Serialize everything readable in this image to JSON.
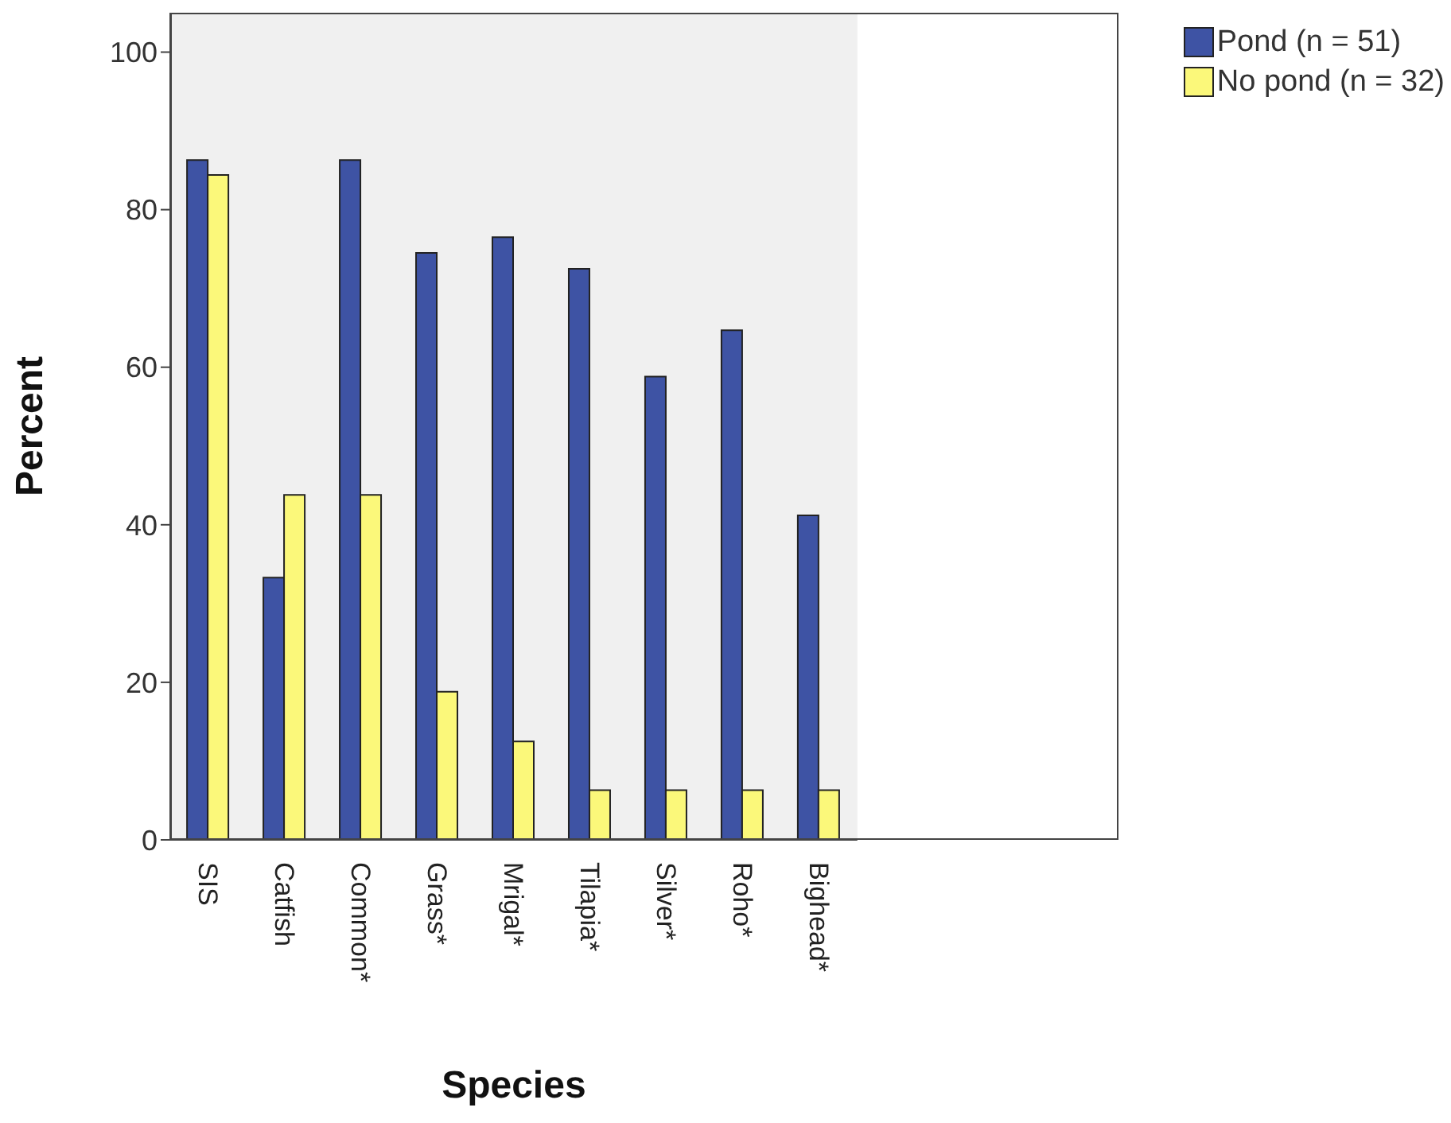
{
  "chart_data": {
    "type": "bar",
    "xlabel": "Species",
    "ylabel": "Percent",
    "categories": [
      "SIS",
      "Catfish",
      "Common*",
      "Grass*",
      "Mrigal*",
      "Tilapia*",
      "Silver*",
      "Roho*",
      "Bighead*"
    ],
    "series": [
      {
        "name": "Pond (n = 51)",
        "color": "#3e53a4",
        "values": [
          86.3,
          33.3,
          86.3,
          74.5,
          76.5,
          72.5,
          58.8,
          64.7,
          41.2
        ]
      },
      {
        "name": "No pond (n = 32)",
        "color": "#fbf87a",
        "values": [
          84.4,
          43.8,
          43.8,
          18.8,
          12.5,
          6.3,
          6.3,
          6.3,
          6.3
        ]
      }
    ],
    "ylim": [
      0,
      105
    ],
    "yticks": [
      0,
      20,
      40,
      60,
      80,
      100
    ],
    "legend": "top right"
  }
}
